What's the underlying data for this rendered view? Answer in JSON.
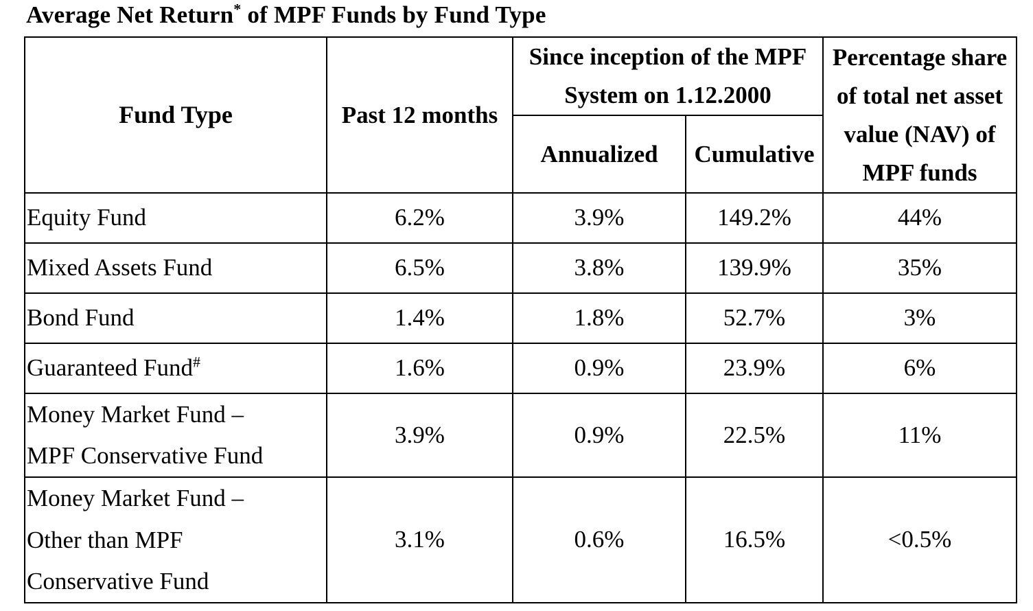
{
  "title": {
    "text": "Average Net Return",
    "sup": "*",
    "rest": " of MPF Funds by Fund Type"
  },
  "headers": {
    "fund_type": "Fund Type",
    "past_12": "Past 12 months",
    "since_line1": "Since inception of the MPF",
    "since_line2": "System on 1.12.2000",
    "annualized": "Annualized",
    "cumulative": "Cumulative",
    "share_line1": "Percentage share",
    "share_line2": "of total net asset",
    "share_line3": "value (NAV) of",
    "share_line4": "MPF funds"
  },
  "rows": [
    {
      "fund": [
        "Equity Fund"
      ],
      "sup": "",
      "past12": "6.2%",
      "annualized": "3.9%",
      "cumulative": "149.2%",
      "share": "44%"
    },
    {
      "fund": [
        "Mixed Assets Fund"
      ],
      "sup": "",
      "past12": "6.5%",
      "annualized": "3.8%",
      "cumulative": "139.9%",
      "share": "35%"
    },
    {
      "fund": [
        "Bond Fund"
      ],
      "sup": "",
      "past12": "1.4%",
      "annualized": "1.8%",
      "cumulative": "52.7%",
      "share": "3%"
    },
    {
      "fund": [
        "Guaranteed Fund"
      ],
      "sup": "#",
      "past12": "1.6%",
      "annualized": "0.9%",
      "cumulative": "23.9%",
      "share": "6%"
    },
    {
      "fund": [
        "Money Market Fund –",
        "MPF Conservative Fund"
      ],
      "sup": "",
      "past12": "3.9%",
      "annualized": "0.9%",
      "cumulative": "22.5%",
      "share": "11%"
    },
    {
      "fund": [
        "Money Market Fund –",
        "Other than MPF",
        "Conservative Fund"
      ],
      "sup": "",
      "past12": "3.1%",
      "annualized": "0.6%",
      "cumulative": "16.5%",
      "share": "<0.5%"
    }
  ]
}
